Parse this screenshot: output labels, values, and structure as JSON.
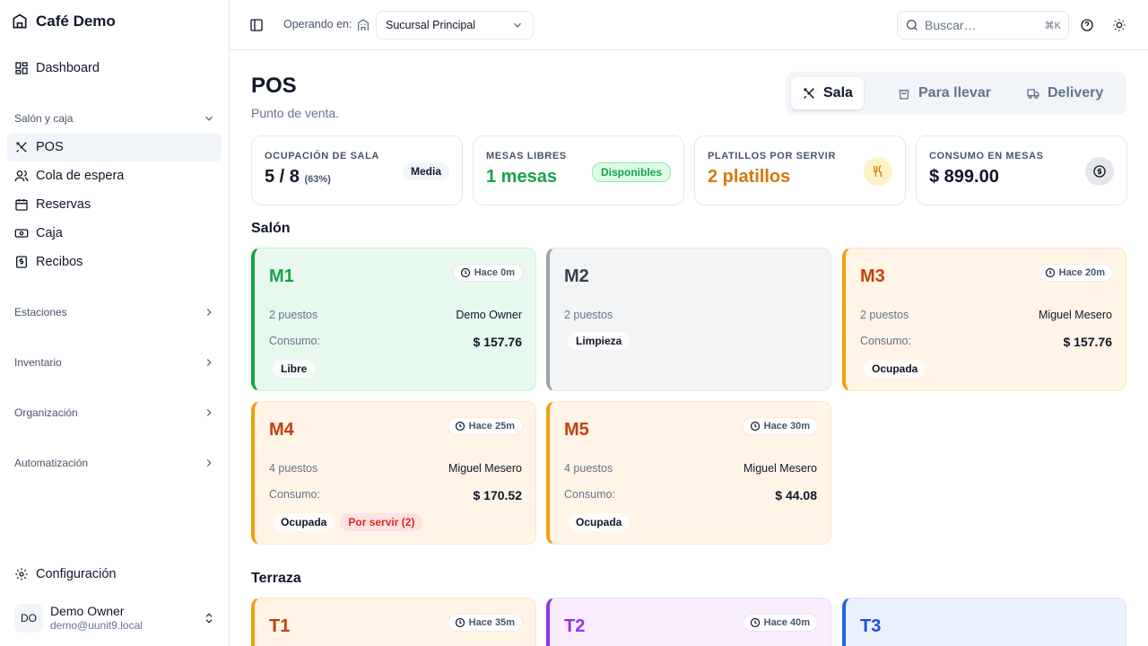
{
  "sidebar": {
    "brand": "Café Demo",
    "dashboard": "Dashboard",
    "section_salon": "Salón y caja",
    "items": [
      "POS",
      "Cola de espera",
      "Reservas",
      "Caja",
      "Recibos"
    ],
    "sections": [
      "Estaciones",
      "Inventario",
      "Organización",
      "Automatización"
    ],
    "settings": "Configuración",
    "user": {
      "initials": "DO",
      "name": "Demo Owner",
      "email": "demo@uunit9.local"
    }
  },
  "header": {
    "operando": "Operando en:",
    "branch": "Sucursal Principal",
    "search_placeholder": "Buscar…",
    "search_kbd": "⌘K"
  },
  "page": {
    "title": "POS",
    "subtitle": "Punto de venta."
  },
  "modes": [
    "Sala",
    "Para llevar",
    "Delivery"
  ],
  "stats": [
    {
      "label": "OCUPACIÓN DE SALA",
      "value": "5 / 8",
      "extra": "(63%)",
      "badge": "Media"
    },
    {
      "label": "MESAS LIBRES",
      "value": "1 mesas",
      "badge": "Disponibles"
    },
    {
      "label": "PLATILLOS POR SERVIR",
      "value": "2 platillos"
    },
    {
      "label": "CONSUMO EN MESAS",
      "value": "$ 899.00"
    }
  ],
  "areas": {
    "salon": "Salón",
    "terraza": "Terraza"
  },
  "tables": {
    "m1": {
      "name": "M1",
      "time": "Hace 0m",
      "seats": "2 puestos",
      "waiter": "Demo Owner",
      "consumo_label": "Consumo:",
      "consumo": "$ 157.76",
      "status": "Libre"
    },
    "m2": {
      "name": "M2",
      "seats": "2 puestos",
      "status": "Limpieza"
    },
    "m3": {
      "name": "M3",
      "time": "Hace 20m",
      "seats": "2 puestos",
      "waiter": "Miguel Mesero",
      "consumo_label": "Consumo:",
      "consumo": "$ 157.76",
      "status": "Ocupada"
    },
    "m4": {
      "name": "M4",
      "time": "Hace 25m",
      "seats": "4 puestos",
      "waiter": "Miguel Mesero",
      "consumo_label": "Consumo:",
      "consumo": "$ 170.52",
      "status": "Ocupada",
      "pending": "Por servir (2)"
    },
    "m5": {
      "name": "M5",
      "time": "Hace 30m",
      "seats": "4 puestos",
      "waiter": "Miguel Mesero",
      "consumo_label": "Consumo:",
      "consumo": "$ 44.08",
      "status": "Ocupada"
    },
    "t1": {
      "name": "T1",
      "time": "Hace 35m"
    },
    "t2": {
      "name": "T2",
      "time": "Hace 40m"
    },
    "t3": {
      "name": "T3"
    }
  },
  "colors": {
    "free": "#16a34a",
    "occupied": "#f59e0b",
    "cleaning": "#9ca3af",
    "reserved": "#9333ea",
    "blue": "#2563eb",
    "pending": "#dc2626"
  }
}
